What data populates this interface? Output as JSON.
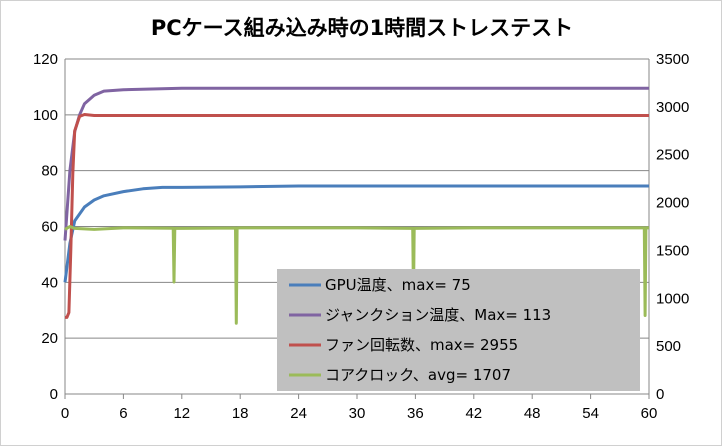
{
  "chart_data": {
    "type": "line",
    "title": "PCケース組み込み時の1時間ストレステスト",
    "xlabel": "",
    "ylabel": "",
    "xlim": [
      0,
      60
    ],
    "ylim": [
      0,
      120
    ],
    "y2lim": [
      0,
      3500
    ],
    "x_ticks": [
      0,
      6,
      12,
      18,
      24,
      30,
      36,
      42,
      48,
      54,
      60
    ],
    "y_ticks": [
      0,
      20,
      40,
      60,
      80,
      100,
      120
    ],
    "y2_ticks": [
      0,
      500,
      1000,
      1500,
      2000,
      2500,
      3000,
      3500
    ],
    "grid": "horizontal",
    "legend_position": "bottom-right",
    "legend_background": "#c0c0c0",
    "series": [
      {
        "name": "GPU温度、max= 75",
        "axis": "left",
        "color": "#4a7ebb",
        "x": [
          0,
          0.5,
          1,
          2,
          3,
          4,
          6,
          8,
          10,
          12,
          18,
          24,
          30,
          36,
          42,
          48,
          54,
          60
        ],
        "y": [
          40,
          54,
          62,
          67,
          69.5,
          71,
          72.5,
          73.5,
          74,
          74,
          74.2,
          74.5,
          74.5,
          74.5,
          74.5,
          74.5,
          74.5,
          74.5
        ]
      },
      {
        "name": "ジャンクション温度、Max= 113",
        "axis": "left",
        "color": "#8064a2",
        "x": [
          0,
          0.5,
          1,
          1.5,
          2,
          3,
          4,
          6,
          12,
          18,
          24,
          30,
          36,
          42,
          48,
          54,
          60
        ],
        "y": [
          55,
          80,
          94,
          100,
          104,
          107,
          108.5,
          109,
          109.5,
          109.5,
          109.5,
          109.5,
          109.5,
          109.5,
          109.5,
          109.5,
          109.5
        ]
      },
      {
        "name": "ファン回転数、max= 2955",
        "axis": "right",
        "color": "#c0504d",
        "x": [
          0,
          0.2,
          0.4,
          0.6,
          0.8,
          1,
          1.5,
          2,
          3,
          6,
          12,
          18,
          24,
          30,
          36,
          42,
          48,
          54,
          60
        ],
        "y": [
          800,
          800,
          850,
          1500,
          2300,
          2750,
          2900,
          2920,
          2910,
          2910,
          2910,
          2910,
          2910,
          2910,
          2910,
          2910,
          2910,
          2910,
          2910
        ]
      },
      {
        "name": "コアクロック、avg= 1707",
        "axis": "right",
        "color": "#9bbb59",
        "x": [
          0,
          0.5,
          1,
          3,
          6,
          12,
          18,
          24,
          30,
          36,
          42,
          48,
          54,
          60
        ],
        "y": [
          1720,
          1750,
          1730,
          1720,
          1735,
          1730,
          1735,
          1735,
          1735,
          1730,
          1735,
          1735,
          1735,
          1735
        ],
        "dips": [
          {
            "x": 11.2,
            "y": 1170
          },
          {
            "x": 17.6,
            "y": 740
          },
          {
            "x": 35.8,
            "y": 1020
          },
          {
            "x": 59.6,
            "y": 820
          }
        ]
      }
    ]
  }
}
